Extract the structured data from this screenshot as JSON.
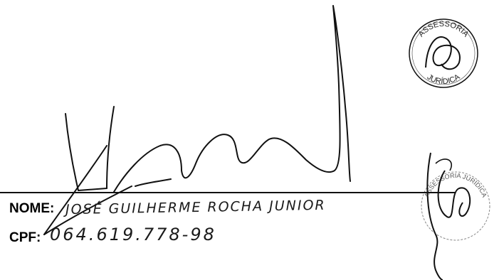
{
  "form": {
    "nome_label": "NOME:",
    "nome_value": "JOSÉ GUILHERME ROCHA JUNIOR",
    "cpf_label": "CPF:",
    "cpf_value": "064.619.778-98"
  },
  "stamps": {
    "primary_text_top": "ASSESSORIA",
    "primary_text_bottom": "JURÍDICA",
    "secondary_text": "ASSESSORIA JURÍDICA"
  }
}
